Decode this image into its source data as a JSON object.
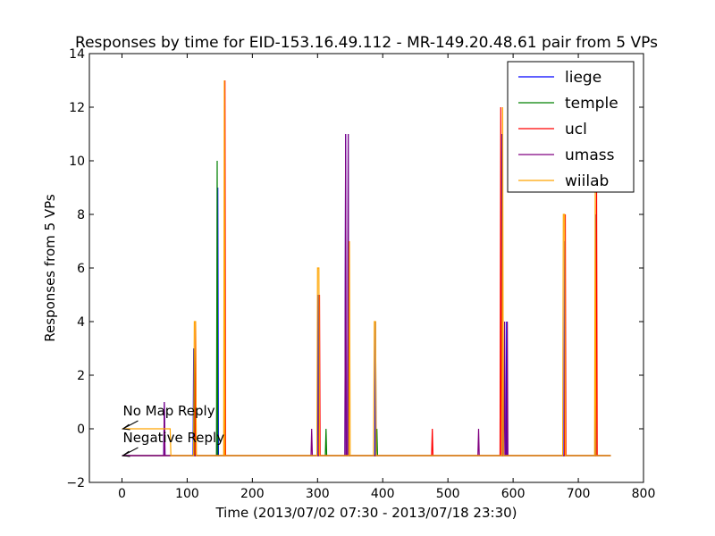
{
  "chart_data": {
    "type": "line",
    "title": "Responses by time for EID-153.16.49.112 - MR-149.20.48.61 pair from 5 VPs",
    "xlabel": "Time (2013/07/02 07:30 - 2013/07/18 23:30)",
    "ylabel": "Responses from 5 VPs",
    "xlim": [
      -50,
      800
    ],
    "ylim": [
      -2,
      14
    ],
    "xticks": [
      "0",
      "100",
      "200",
      "300",
      "400",
      "500",
      "600",
      "700",
      "800"
    ],
    "xtick_values": [
      0,
      100,
      200,
      300,
      400,
      500,
      600,
      700,
      800
    ],
    "yticks": [
      "−2",
      "0",
      "2",
      "4",
      "6",
      "8",
      "10",
      "12",
      "14"
    ],
    "ytick_values": [
      -2,
      0,
      2,
      4,
      6,
      8,
      10,
      12,
      14
    ],
    "grid": false,
    "legend_position": "top-right",
    "annotations": [
      {
        "text": "No Map Reply",
        "x": 0,
        "y": 0
      },
      {
        "text": "Negative Reply",
        "x": 0,
        "y": -1
      }
    ],
    "series": [
      {
        "name": "liege",
        "color": "#0000ff",
        "points": [
          [
            0,
            -1
          ],
          [
            64,
            -1
          ],
          [
            65,
            1
          ],
          [
            66,
            -1
          ],
          [
            109,
            -1
          ],
          [
            110,
            3
          ],
          [
            111,
            -1
          ],
          [
            146,
            -1
          ],
          [
            147,
            9
          ],
          [
            148,
            -1
          ],
          [
            300,
            -1
          ],
          [
            301,
            5
          ],
          [
            302,
            -1
          ],
          [
            342,
            -1
          ],
          [
            343,
            11
          ],
          [
            344,
            -1
          ],
          [
            346,
            -1
          ],
          [
            347,
            11
          ],
          [
            348,
            -1
          ],
          [
            388,
            -1
          ],
          [
            389,
            4
          ],
          [
            390,
            -1
          ],
          [
            582,
            -1
          ],
          [
            583,
            11
          ],
          [
            584,
            -1
          ],
          [
            589,
            -1
          ],
          [
            590,
            4
          ],
          [
            591,
            -1
          ],
          [
            678,
            -1
          ],
          [
            679,
            7
          ],
          [
            680,
            -1
          ],
          [
            726,
            -1
          ],
          [
            727,
            8
          ],
          [
            728,
            -1
          ],
          [
            750,
            -1
          ]
        ]
      },
      {
        "name": "temple",
        "color": "#008000",
        "points": [
          [
            0,
            -1
          ],
          [
            110,
            -1
          ],
          [
            111,
            3
          ],
          [
            112,
            -1
          ],
          [
            145,
            -1
          ],
          [
            146,
            10
          ],
          [
            147,
            -1
          ],
          [
            312,
            -1
          ],
          [
            313,
            0
          ],
          [
            314,
            -1
          ],
          [
            390,
            -1
          ],
          [
            391,
            0
          ],
          [
            392,
            -1
          ],
          [
            750,
            -1
          ]
        ]
      },
      {
        "name": "ucl",
        "color": "#ff0000",
        "points": [
          [
            0,
            -1
          ],
          [
            112,
            -1
          ],
          [
            113,
            4
          ],
          [
            114,
            -1
          ],
          [
            157,
            -1
          ],
          [
            158,
            13
          ],
          [
            159,
            -1
          ],
          [
            302,
            -1
          ],
          [
            303,
            5
          ],
          [
            304,
            -1
          ],
          [
            475,
            -1
          ],
          [
            476,
            0
          ],
          [
            477,
            -1
          ],
          [
            580,
            -1
          ],
          [
            581,
            12
          ],
          [
            582,
            -1
          ],
          [
            679,
            -1
          ],
          [
            680,
            8
          ],
          [
            681,
            -1
          ],
          [
            727,
            -1
          ],
          [
            728,
            9
          ],
          [
            729,
            -1
          ],
          [
            750,
            -1
          ]
        ]
      },
      {
        "name": "umass",
        "color": "#800080",
        "points": [
          [
            0,
            -1
          ],
          [
            64,
            -1
          ],
          [
            65,
            1
          ],
          [
            66,
            -1
          ],
          [
            290,
            -1
          ],
          [
            291,
            0
          ],
          [
            292,
            -1
          ],
          [
            342,
            -1
          ],
          [
            343,
            11
          ],
          [
            344,
            -1
          ],
          [
            346,
            -1
          ],
          [
            347,
            11
          ],
          [
            348,
            -1
          ],
          [
            546,
            -1
          ],
          [
            547,
            0
          ],
          [
            548,
            -1
          ],
          [
            586,
            -1
          ],
          [
            587,
            4
          ],
          [
            588,
            -1
          ],
          [
            590,
            -1
          ],
          [
            591,
            4
          ],
          [
            592,
            -1
          ],
          [
            750,
            -1
          ]
        ]
      },
      {
        "name": "wiilab",
        "color": "#ffa500",
        "points": [
          [
            0,
            0
          ],
          [
            74,
            0
          ],
          [
            75,
            -1
          ],
          [
            110,
            -1
          ],
          [
            111,
            4
          ],
          [
            113,
            4
          ],
          [
            114,
            -1
          ],
          [
            156,
            -1
          ],
          [
            157,
            13
          ],
          [
            158,
            -1
          ],
          [
            299,
            -1
          ],
          [
            300,
            6
          ],
          [
            302,
            6
          ],
          [
            303,
            -1
          ],
          [
            348,
            -1
          ],
          [
            349,
            7
          ],
          [
            350,
            -1
          ],
          [
            386,
            -1
          ],
          [
            387,
            4
          ],
          [
            389,
            4
          ],
          [
            390,
            -1
          ],
          [
            583,
            -1
          ],
          [
            584,
            12
          ],
          [
            585,
            -1
          ],
          [
            676,
            -1
          ],
          [
            677,
            8
          ],
          [
            679,
            8
          ],
          [
            680,
            -1
          ],
          [
            725,
            -1
          ],
          [
            726,
            9
          ],
          [
            727,
            -1
          ],
          [
            750,
            -1
          ]
        ]
      }
    ]
  }
}
